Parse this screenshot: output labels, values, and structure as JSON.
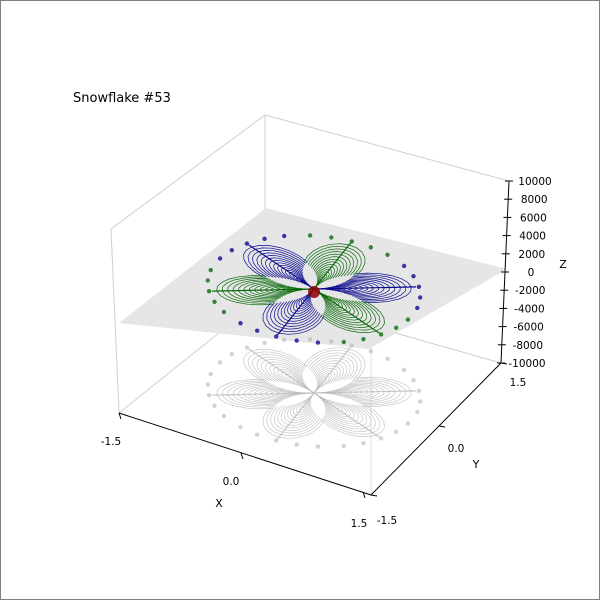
{
  "chart_data": {
    "type": "3d-line",
    "title": "Snowflake #53",
    "xlabel": "X",
    "ylabel": "Y",
    "zlabel": "Z",
    "xlim": [
      -1.5,
      1.5
    ],
    "ylim": [
      -1.5,
      1.5
    ],
    "zlim": [
      -10000,
      10000
    ],
    "xticks": [
      "-1.5",
      "0.0",
      "1.5"
    ],
    "yticks": [
      "-1.5",
      "0.0",
      "1.5"
    ],
    "zticks": [
      "10000",
      "8000",
      "6000",
      "4000",
      "2000",
      "0",
      "-2000",
      "-4000",
      "-6000",
      "-8000",
      "-10000"
    ],
    "z_plane": 0,
    "arms": 6,
    "series": [
      {
        "color": "#00008b",
        "role": "arms-a"
      },
      {
        "color": "#006400",
        "role": "arms-b"
      },
      {
        "color": "#8b0000",
        "role": "center"
      },
      {
        "color": "#b0b0b0",
        "role": "floor-shadow"
      }
    ],
    "plane_color": "#e6e6e6",
    "grid": true
  }
}
